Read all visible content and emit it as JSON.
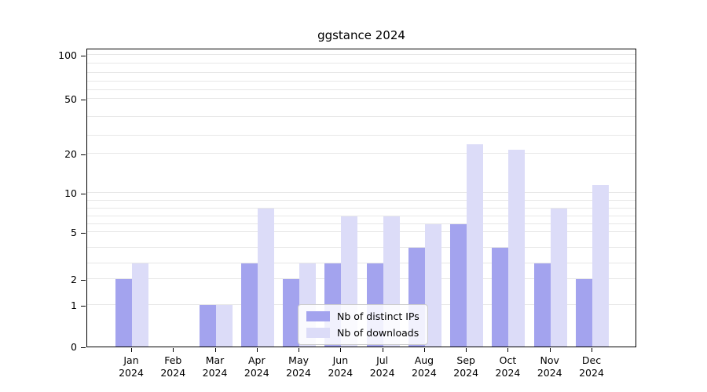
{
  "title": "ggstance 2024",
  "chart_data": {
    "type": "bar",
    "title": "ggstance 2024",
    "categories": [
      "Jan",
      "Feb",
      "Mar",
      "Apr",
      "May",
      "Jun",
      "Jul",
      "Aug",
      "Sep",
      "Oct",
      "Nov",
      "Dec"
    ],
    "year": "2024",
    "series": [
      {
        "name": "Nb of distinct IPs",
        "color": "#a3a3ee",
        "values": [
          2,
          0,
          1,
          3,
          2,
          3,
          3,
          4,
          6,
          4,
          3,
          2
        ]
      },
      {
        "name": "Nb of downloads",
        "color": "#dcdcf8",
        "values": [
          3,
          0,
          1,
          8,
          3,
          7,
          7,
          6,
          25,
          22,
          8,
          12
        ]
      }
    ],
    "xlabel": "",
    "ylabel": "",
    "yticks": [
      0,
      1,
      2,
      5,
      10,
      20,
      50,
      100
    ],
    "minor_gridlines": [
      3,
      4,
      6,
      7,
      8,
      9,
      30,
      40,
      60,
      70,
      80,
      90
    ],
    "ylim": [
      0,
      110
    ],
    "scale": "log-like",
    "scale_anchors": [
      [
        0,
        0.0
      ],
      [
        1,
        0.139
      ],
      [
        2,
        0.226
      ],
      [
        5,
        0.383
      ],
      [
        10,
        0.514
      ],
      [
        20,
        0.646
      ],
      [
        50,
        0.829
      ],
      [
        100,
        0.976
      ]
    ],
    "grid": true,
    "legend_position": "lower center",
    "colors": {
      "grid": "#e7e7e7",
      "axis": "#000000",
      "background": "#ffffff"
    }
  }
}
